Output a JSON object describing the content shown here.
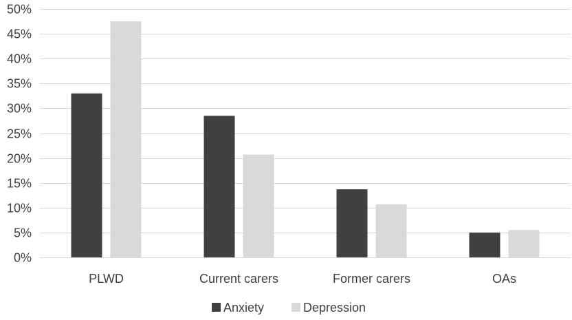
{
  "chart_data": {
    "type": "bar",
    "title": "",
    "xlabel": "",
    "ylabel": "",
    "categories": [
      "PLWD",
      "Current carers",
      "Former carers",
      "OAs"
    ],
    "series": [
      {
        "name": "Anxiety",
        "color": "#404040",
        "values": [
          33,
          28.5,
          13.7,
          5
        ]
      },
      {
        "name": "Depression",
        "color": "#d9d9d9",
        "values": [
          47.5,
          20.7,
          10.7,
          5.5
        ]
      }
    ],
    "ylim": [
      0,
      50
    ],
    "ytick_values": [
      0,
      5,
      10,
      15,
      20,
      25,
      30,
      35,
      40,
      45,
      50
    ],
    "ytick_labels": [
      "0%",
      "5%",
      "10%",
      "15%",
      "20%",
      "25%",
      "30%",
      "35%",
      "40%",
      "45%",
      "50%"
    ],
    "grid": true,
    "legend_position": "bottom"
  }
}
